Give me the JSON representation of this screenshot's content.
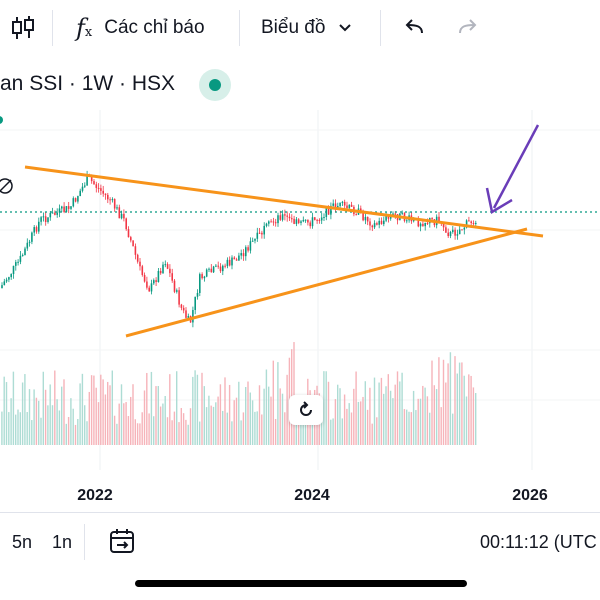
{
  "toolbar": {
    "indicators_label": "Các chỉ báo",
    "chart_type_label": "Biểu đồ"
  },
  "symbol": {
    "title": "an SSI · 1W · HSX"
  },
  "chart_data": {
    "type": "candlestick",
    "x_ticks": [
      "2022",
      "2024",
      "2026"
    ],
    "overlay": [
      "descending resistance line",
      "ascending support line",
      "arrow pointing at breakout"
    ],
    "colors": {
      "up": "#089981",
      "down": "#f23645",
      "trendline": "#f7931a",
      "arrow": "#6a3db8",
      "price_line": "#089981"
    }
  },
  "bottom_bar": {
    "range_5n": "5n",
    "range_1n": "1n",
    "clock": "00:11:12 (UTC"
  }
}
